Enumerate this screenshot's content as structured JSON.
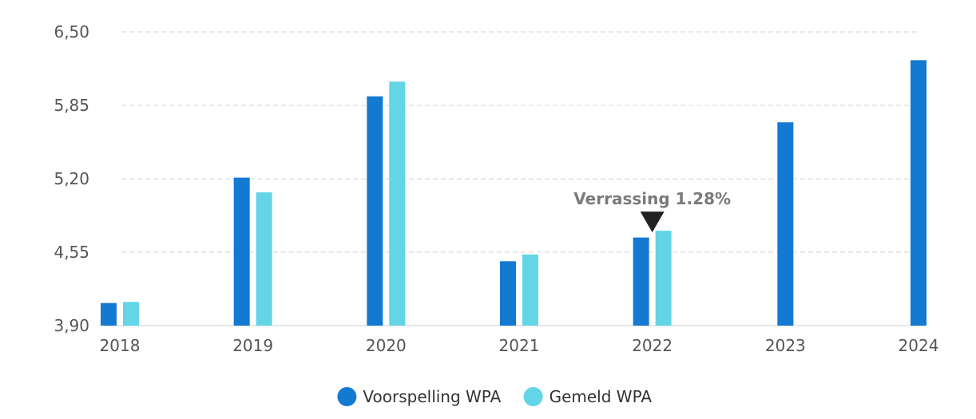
{
  "chart_data": {
    "type": "bar",
    "categories": [
      "2018",
      "2019",
      "2020",
      "2021",
      "2022",
      "2023",
      "2024"
    ],
    "series": [
      {
        "name": "Voorspelling WPA",
        "color": "#1479d1",
        "values": [
          4.1,
          5.21,
          5.93,
          4.47,
          4.68,
          5.7,
          6.25
        ]
      },
      {
        "name": "Gemeld WPA",
        "color": "#63d5e6",
        "values": [
          4.11,
          5.08,
          6.06,
          4.53,
          4.74,
          null,
          null
        ]
      }
    ],
    "ylim": [
      3.9,
      6.5
    ],
    "yticks": [
      "3,90",
      "4,55",
      "5,20",
      "5,85",
      "6,50"
    ],
    "ytick_values": [
      3.9,
      4.55,
      5.2,
      5.85,
      6.5
    ],
    "grid": true,
    "legend": "bottom-center",
    "annotations": [
      {
        "category": "2022",
        "text": "Verrassing 1.28%",
        "marker": "down-triangle",
        "color": "#222222"
      }
    ]
  }
}
